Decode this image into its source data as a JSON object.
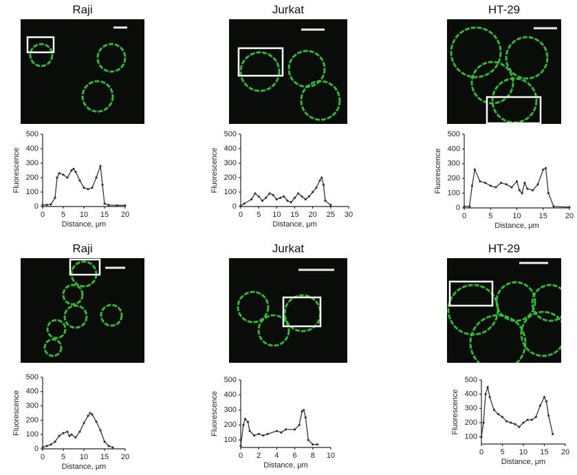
{
  "chart_data": [
    {
      "type": "line",
      "title": "Raji",
      "x_label": "Distance, μm",
      "y_label": "Fluorescence",
      "color": "#333333",
      "xlim": [
        0,
        20
      ],
      "ylim": [
        0,
        500
      ],
      "xticks": [
        0,
        5,
        10,
        15,
        20
      ],
      "yticks": [
        0,
        100,
        200,
        300,
        400,
        500
      ],
      "x": [
        0,
        1,
        2,
        3,
        3.5,
        4,
        5,
        6,
        7,
        7.5,
        8,
        9,
        10,
        11,
        12,
        13,
        14,
        14.5,
        15,
        16,
        18,
        20
      ],
      "values": [
        10,
        12,
        15,
        60,
        200,
        230,
        220,
        200,
        250,
        260,
        240,
        180,
        130,
        120,
        130,
        200,
        280,
        150,
        20,
        10,
        8,
        8
      ]
    },
    {
      "type": "line",
      "title": "Jurkat",
      "x_label": "Distance, μm",
      "y_label": "Fluorescence",
      "color": "#333333",
      "xlim": [
        0,
        30
      ],
      "ylim": [
        0,
        500
      ],
      "xticks": [
        0,
        5,
        10,
        15,
        20,
        25,
        30
      ],
      "yticks": [
        0,
        100,
        200,
        300,
        400,
        500
      ],
      "x": [
        0,
        1,
        3,
        4,
        5,
        6,
        7,
        8,
        9,
        10,
        11,
        12,
        13,
        14,
        15,
        16,
        17,
        18,
        19,
        20,
        21,
        22,
        22.5,
        23,
        23.5,
        25
      ],
      "values": [
        5,
        20,
        50,
        90,
        70,
        40,
        60,
        90,
        80,
        50,
        60,
        70,
        40,
        30,
        60,
        90,
        70,
        50,
        70,
        100,
        130,
        180,
        200,
        150,
        40,
        10
      ]
    },
    {
      "type": "line",
      "title": "HT-29",
      "x_label": "Distance, μm",
      "y_label": "Fluorescence",
      "color": "#333333",
      "xlim": [
        0,
        20
      ],
      "ylim": [
        0,
        500
      ],
      "xticks": [
        0,
        5,
        10,
        15,
        20
      ],
      "yticks": [
        0,
        100,
        200,
        300,
        400,
        500
      ],
      "x": [
        0,
        1,
        1.5,
        2,
        3,
        4,
        5,
        6,
        7,
        8,
        9,
        10,
        10.5,
        11,
        11.5,
        12,
        13,
        14,
        15,
        15.5,
        16,
        17,
        20
      ],
      "values": [
        10,
        10,
        150,
        260,
        180,
        170,
        150,
        140,
        170,
        160,
        140,
        180,
        120,
        100,
        170,
        130,
        120,
        160,
        260,
        270,
        100,
        10,
        5
      ]
    },
    {
      "type": "line",
      "title": "Raji",
      "x_label": "Distance, μm",
      "y_label": "Fluorescence",
      "color": "#333333",
      "xlim": [
        0,
        20
      ],
      "ylim": [
        0,
        500
      ],
      "xticks": [
        0,
        5,
        10,
        15,
        20
      ],
      "yticks": [
        0,
        100,
        200,
        300,
        400,
        500
      ],
      "x": [
        0,
        1,
        2,
        3,
        4,
        5,
        6,
        6.5,
        7,
        8,
        9,
        10,
        11,
        11.5,
        12,
        13,
        14,
        15,
        16,
        17
      ],
      "values": [
        10,
        20,
        30,
        50,
        90,
        110,
        120,
        90,
        100,
        80,
        120,
        180,
        230,
        250,
        240,
        190,
        130,
        50,
        20,
        10
      ]
    },
    {
      "type": "line",
      "title": "Jurkat",
      "x_label": "Distance, μm",
      "y_label": "Fluorescence",
      "color": "#333333",
      "xlim": [
        0,
        10
      ],
      "ylim": [
        50,
        500
      ],
      "xticks": [
        0,
        2,
        4,
        6,
        8,
        10
      ],
      "yticks": [
        100,
        200,
        300,
        400,
        500
      ],
      "x": [
        0,
        0.3,
        0.5,
        0.8,
        1,
        1.5,
        2,
        2.5,
        3,
        4,
        4.5,
        5,
        6,
        6.5,
        6.8,
        7,
        7.2,
        7.5,
        8,
        8.5
      ],
      "values": [
        60,
        200,
        240,
        220,
        160,
        130,
        140,
        130,
        140,
        160,
        150,
        170,
        170,
        200,
        290,
        300,
        250,
        100,
        70,
        70
      ]
    },
    {
      "type": "line",
      "title": "HT-29",
      "x_label": "Distance, μm",
      "y_label": "Fluorescence",
      "color": "#333333",
      "xlim": [
        0,
        20
      ],
      "ylim": [
        50,
        500
      ],
      "xticks": [
        0,
        5,
        10,
        15,
        20
      ],
      "yticks": [
        100,
        200,
        300,
        400,
        500
      ],
      "x": [
        0,
        0.5,
        1,
        1.5,
        2,
        3,
        4,
        5,
        6,
        7,
        8,
        9,
        10,
        11,
        12,
        13,
        14,
        15,
        15.5,
        16,
        17
      ],
      "values": [
        100,
        200,
        400,
        450,
        380,
        290,
        260,
        240,
        210,
        200,
        190,
        170,
        200,
        220,
        220,
        240,
        320,
        380,
        350,
        250,
        120
      ]
    }
  ]
}
